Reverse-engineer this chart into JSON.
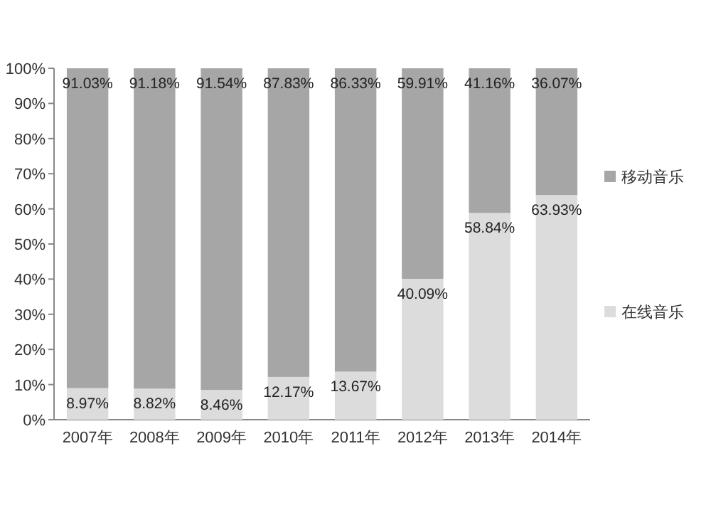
{
  "chart_data": {
    "type": "bar",
    "stacked": true,
    "legend": "right",
    "categories": [
      "2007年",
      "2008年",
      "2009年",
      "2010年",
      "2011年",
      "2012年",
      "2013年",
      "2014年"
    ],
    "ylim": [
      0,
      100
    ],
    "yticks": [
      {
        "value": 0,
        "label": "0%"
      },
      {
        "value": 10,
        "label": "10%"
      },
      {
        "value": 20,
        "label": "20%"
      },
      {
        "value": 30,
        "label": "30%"
      },
      {
        "value": 40,
        "label": "40%"
      },
      {
        "value": 50,
        "label": "50%"
      },
      {
        "value": 60,
        "label": "60%"
      },
      {
        "value": 70,
        "label": "70%"
      },
      {
        "value": 80,
        "label": "80%"
      },
      {
        "value": 90,
        "label": "90%"
      },
      {
        "value": 100,
        "label": "100%"
      }
    ],
    "series": [
      {
        "name": "在线音乐",
        "color": "#dcdcdc",
        "values": [
          8.97,
          8.82,
          8.46,
          12.17,
          13.67,
          40.09,
          58.84,
          63.93
        ],
        "value_labels": [
          "8.97%",
          "8.82%",
          "8.46%",
          "12.17%",
          "13.67%",
          "40.09%",
          "58.84%",
          "63.93%"
        ]
      },
      {
        "name": "移动音乐",
        "color": "#a6a6a6",
        "values": [
          91.03,
          91.18,
          91.54,
          87.83,
          86.33,
          59.91,
          41.16,
          36.07
        ],
        "value_labels": [
          "91.03%",
          "91.18%",
          "91.54%",
          "87.83%",
          "86.33%",
          "59.91%",
          "41.16%",
          "36.07%"
        ]
      }
    ]
  }
}
